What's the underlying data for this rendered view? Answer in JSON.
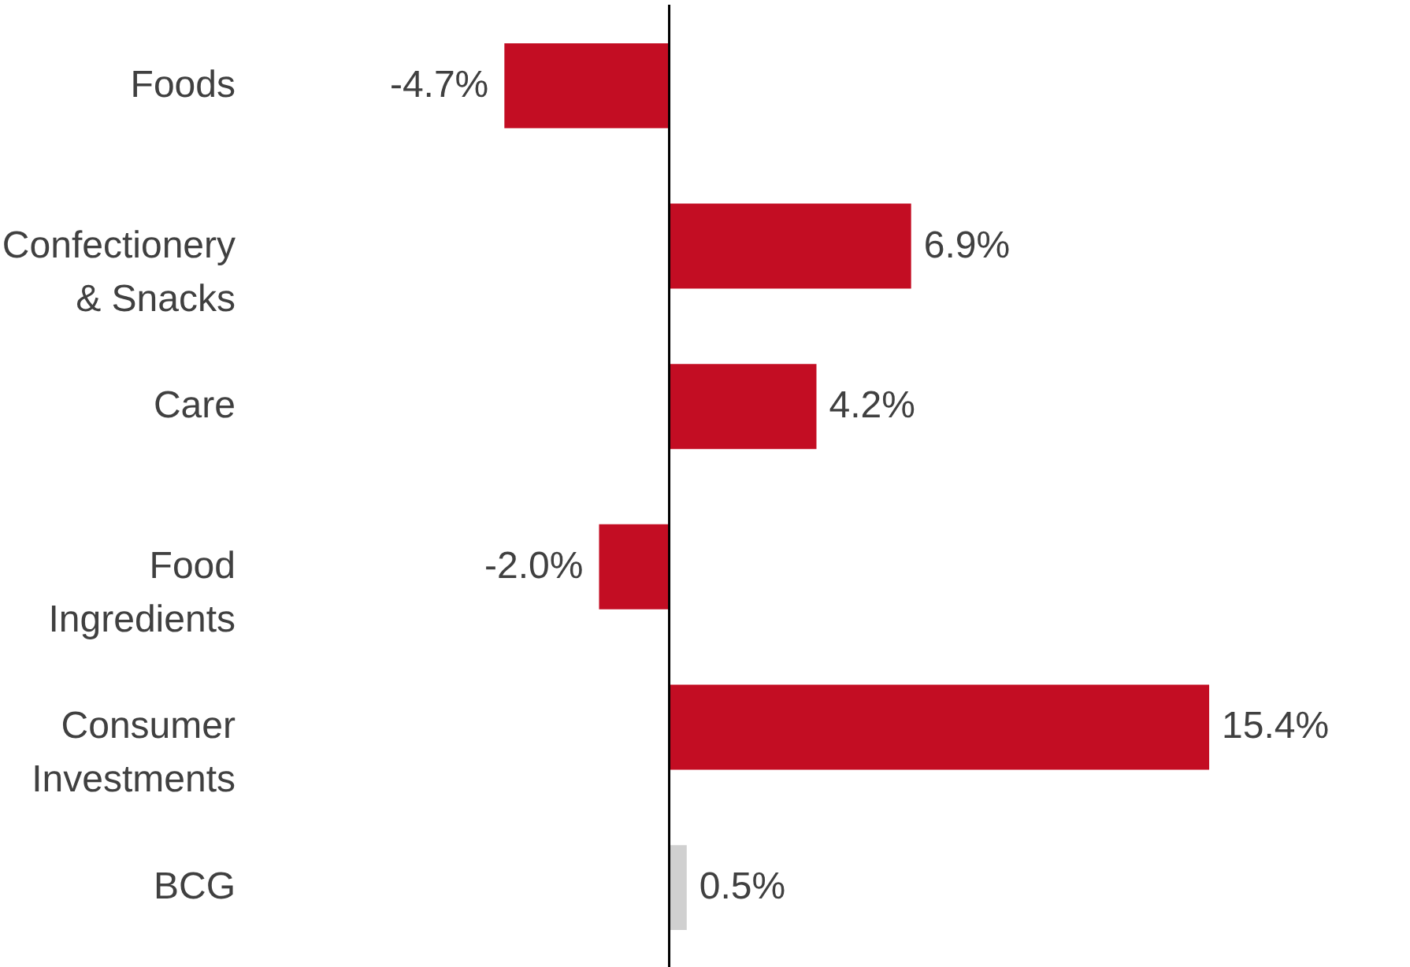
{
  "chart_data": {
    "type": "bar",
    "orientation": "horizontal",
    "categories": [
      "Foods",
      "Confectionery\n& Snacks",
      "Care",
      "Food\nIngredients",
      "Consumer\nInvestments",
      "BCG"
    ],
    "values": [
      -4.7,
      6.9,
      4.2,
      -2.0,
      15.4,
      0.5
    ],
    "colors": [
      "#c30d23",
      "#c30d23",
      "#c30d23",
      "#c30d23",
      "#c30d23",
      "#d0d0d0"
    ],
    "value_labels": [
      "-4.7%",
      "6.9%",
      "4.2%",
      "-2.0%",
      "15.4%",
      "0.5%"
    ],
    "grid": false
  }
}
